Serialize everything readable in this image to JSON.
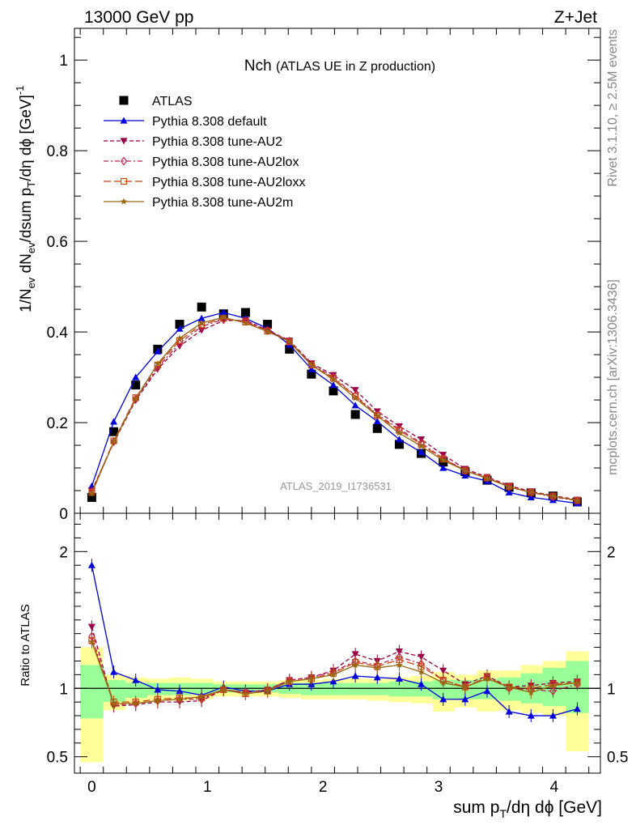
{
  "header": {
    "energy_label": "13000 GeV pp",
    "process_label": "Z+Jet"
  },
  "side_labels": {
    "rivet": "Rivet 3.1.10, ≥ 2.5M events",
    "mcplots": "mcplots.cern.ch [arXiv:1306.3436]"
  },
  "chart_data": {
    "type": "line",
    "title": "Nch",
    "subtitle": "(ATLAS UE in Z production)",
    "analysis_tag": "ATLAS_2019_I1736531",
    "xlabel": "sum pT/dη dϕ [GeV]",
    "ylabel": "1/Nev dNev/dsum pT/dη dϕ [GeV]-1",
    "xlim": [
      -0.15,
      4.4
    ],
    "ylim": [
      0,
      1.07
    ],
    "xticks": [
      "0",
      "1",
      "2",
      "3",
      "4"
    ],
    "yticks": [
      "0",
      "0.2",
      "0.4",
      "0.6",
      "0.8",
      "1"
    ],
    "legend_position": "top-left",
    "x": [
      0,
      0.19,
      0.38,
      0.57,
      0.76,
      0.95,
      1.14,
      1.33,
      1.52,
      1.71,
      1.9,
      2.09,
      2.28,
      2.47,
      2.66,
      2.85,
      3.04,
      3.23,
      3.42,
      3.61,
      3.8,
      3.99,
      4.2
    ],
    "series": [
      {
        "name": "ATLAS",
        "color": "#000000",
        "marker": "square",
        "line": "none",
        "values": [
          0.035,
          0.18,
          0.283,
          0.362,
          0.417,
          0.455,
          0.44,
          0.443,
          0.417,
          0.362,
          0.307,
          0.27,
          0.218,
          0.187,
          0.152,
          0.132,
          0.113,
          0.092,
          0.073,
          0.057,
          0.045,
          0.038,
          0.025
        ]
      },
      {
        "name": "Pythia 8.308 default",
        "color": "#0000dd",
        "marker": "triangle-up",
        "line": "solid",
        "values": [
          0.06,
          0.202,
          0.3,
          0.357,
          0.407,
          0.43,
          0.443,
          0.43,
          0.408,
          0.372,
          0.318,
          0.283,
          0.238,
          0.203,
          0.163,
          0.135,
          0.1,
          0.083,
          0.071,
          0.046,
          0.035,
          0.029,
          0.022
        ]
      },
      {
        "name": "Pythia 8.308 tune-AU2",
        "color": "#990044",
        "marker": "triangle-down",
        "line": "dashed",
        "values": [
          0.05,
          0.156,
          0.249,
          0.318,
          0.369,
          0.404,
          0.425,
          0.426,
          0.404,
          0.381,
          0.331,
          0.305,
          0.272,
          0.225,
          0.192,
          0.163,
          0.129,
          0.098,
          0.08,
          0.061,
          0.048,
          0.039,
          0.03
        ]
      },
      {
        "name": "Pythia 8.308 tune-AU2lox",
        "color": "#bb2255",
        "marker": "diamond-open",
        "line": "dashdot",
        "values": [
          0.047,
          0.158,
          0.252,
          0.322,
          0.375,
          0.412,
          0.428,
          0.424,
          0.403,
          0.38,
          0.329,
          0.3,
          0.26,
          0.218,
          0.186,
          0.155,
          0.121,
          0.095,
          0.078,
          0.058,
          0.046,
          0.036,
          0.028
        ]
      },
      {
        "name": "Pythia 8.308 tune-AU2loxx",
        "color": "#cc4411",
        "marker": "square-open",
        "line": "longdash",
        "values": [
          0.046,
          0.16,
          0.255,
          0.327,
          0.381,
          0.416,
          0.43,
          0.422,
          0.402,
          0.378,
          0.327,
          0.298,
          0.258,
          0.216,
          0.183,
          0.152,
          0.12,
          0.094,
          0.078,
          0.059,
          0.046,
          0.038,
          0.028
        ]
      },
      {
        "name": "Pythia 8.308 tune-AU2m",
        "color": "#996611",
        "marker": "star",
        "line": "solid",
        "values": [
          0.044,
          0.158,
          0.252,
          0.33,
          0.386,
          0.42,
          0.432,
          0.42,
          0.401,
          0.379,
          0.327,
          0.295,
          0.254,
          0.215,
          0.177,
          0.148,
          0.117,
          0.094,
          0.077,
          0.058,
          0.046,
          0.038,
          0.028
        ]
      }
    ],
    "ratio_panel": {
      "ylabel": "Ratio to ATLAS",
      "ylim": [
        0.38,
        2.28
      ],
      "yticks": [
        "0.5",
        "1",
        "2"
      ],
      "band_edges": [
        -0.1,
        0.1,
        0.29,
        0.48,
        0.67,
        0.86,
        1.05,
        1.24,
        1.43,
        1.62,
        1.81,
        2.0,
        2.19,
        2.38,
        2.57,
        2.76,
        2.95,
        3.14,
        3.33,
        3.52,
        3.71,
        3.9,
        4.1,
        4.3
      ],
      "green_band": [
        [
          0.78,
          1.17
        ],
        [
          0.9,
          1.06
        ],
        [
          0.93,
          1.04
        ],
        [
          0.95,
          1.04
        ],
        [
          0.95,
          1.04
        ],
        [
          0.96,
          1.04
        ],
        [
          0.97,
          1.03
        ],
        [
          0.97,
          1.03
        ],
        [
          0.97,
          1.03
        ],
        [
          0.96,
          1.04
        ],
        [
          0.95,
          1.04
        ],
        [
          0.95,
          1.04
        ],
        [
          0.95,
          1.04
        ],
        [
          0.95,
          1.04
        ],
        [
          0.94,
          1.05
        ],
        [
          0.94,
          1.05
        ],
        [
          0.92,
          1.06
        ],
        [
          0.92,
          1.06
        ],
        [
          0.92,
          1.07
        ],
        [
          0.91,
          1.08
        ],
        [
          0.89,
          1.11
        ],
        [
          0.87,
          1.15
        ],
        [
          0.82,
          1.2
        ]
      ],
      "yellow_band": [
        [
          0.46,
          1.3
        ],
        [
          0.84,
          1.1
        ],
        [
          0.89,
          1.08
        ],
        [
          0.91,
          1.07
        ],
        [
          0.91,
          1.08
        ],
        [
          0.92,
          1.07
        ],
        [
          0.94,
          1.05
        ],
        [
          0.94,
          1.05
        ],
        [
          0.94,
          1.05
        ],
        [
          0.93,
          1.06
        ],
        [
          0.92,
          1.06
        ],
        [
          0.92,
          1.07
        ],
        [
          0.92,
          1.07
        ],
        [
          0.91,
          1.07
        ],
        [
          0.9,
          1.08
        ],
        [
          0.89,
          1.09
        ],
        [
          0.83,
          1.12
        ],
        [
          0.86,
          1.1
        ],
        [
          0.83,
          1.13
        ],
        [
          0.84,
          1.13
        ],
        [
          0.82,
          1.17
        ],
        [
          0.8,
          1.2
        ],
        [
          0.54,
          1.27
        ]
      ],
      "series": [
        {
          "name": "Pythia 8.308 default",
          "values": [
            1.9,
            1.12,
            1.06,
            0.99,
            0.98,
            0.95,
            1.01,
            0.98,
            0.98,
            1.03,
            1.03,
            1.05,
            1.09,
            1.08,
            1.07,
            1.03,
            0.92,
            0.92,
            0.98,
            0.83,
            0.8,
            0.8,
            0.85
          ]
        },
        {
          "name": "Pythia 8.308 tune-AU2",
          "values": [
            1.45,
            0.87,
            0.88,
            0.9,
            0.9,
            0.91,
            0.99,
            0.97,
            0.99,
            1.06,
            1.08,
            1.13,
            1.25,
            1.2,
            1.27,
            1.23,
            1.13,
            1.03,
            1.09,
            1.01,
            1.02,
            1.04,
            1.05
          ]
        },
        {
          "name": "Pythia 8.308 tune-AU2lox",
          "values": [
            1.38,
            0.88,
            0.89,
            0.91,
            0.92,
            0.92,
            0.99,
            0.97,
            0.99,
            1.06,
            1.08,
            1.12,
            1.2,
            1.17,
            1.23,
            1.18,
            1.06,
            1.01,
            1.08,
            1.0,
            0.99,
            0.98,
            1.03
          ]
        },
        {
          "name": "Pythia 8.308 tune-AU2loxx",
          "values": [
            1.35,
            0.9,
            0.9,
            0.92,
            0.93,
            0.93,
            0.99,
            0.96,
            0.98,
            1.05,
            1.07,
            1.11,
            1.19,
            1.16,
            1.21,
            1.16,
            1.06,
            1.01,
            1.08,
            1.01,
            1.0,
            1.03,
            1.04
          ]
        },
        {
          "name": "Pythia 8.308 tune-AU2m",
          "values": [
            1.34,
            0.89,
            0.89,
            0.91,
            0.92,
            0.94,
            0.99,
            0.96,
            0.98,
            1.05,
            1.07,
            1.1,
            1.17,
            1.15,
            1.17,
            1.12,
            1.04,
            1.01,
            1.07,
            1.01,
            0.97,
            1.02,
            1.04
          ]
        }
      ]
    }
  }
}
